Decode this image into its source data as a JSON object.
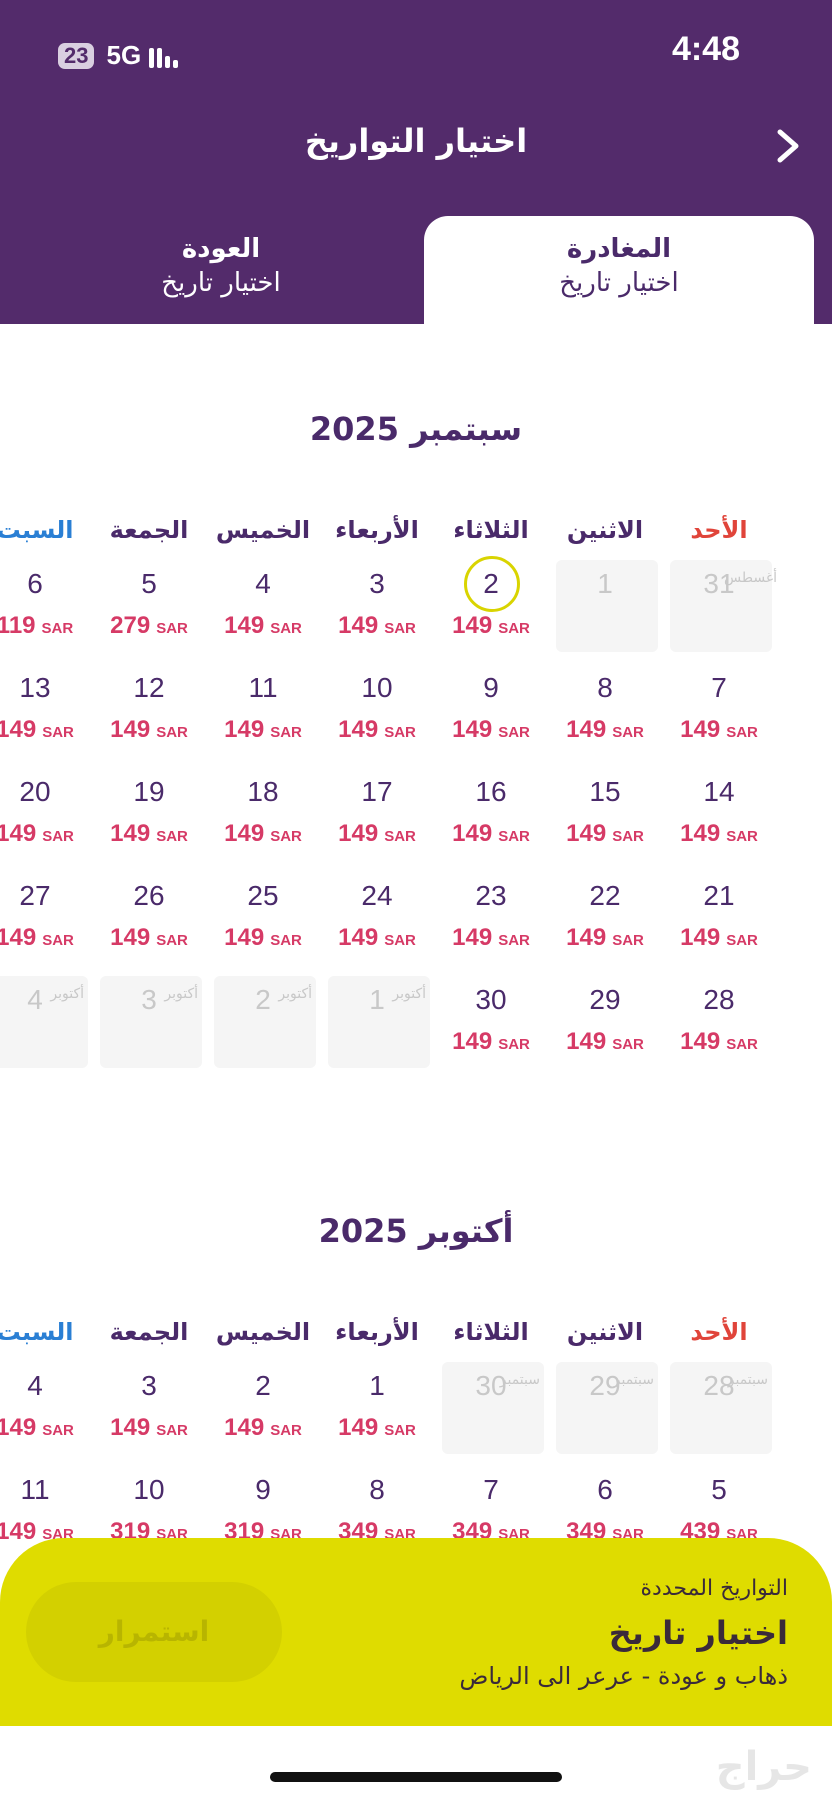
{
  "status": {
    "time": "4:48",
    "battery": "23",
    "network": "5G"
  },
  "header": {
    "title": "اختيار التواريخ"
  },
  "tabs": {
    "depart": {
      "label": "المغادرة",
      "value": "اختيار تاريخ"
    },
    "return": {
      "label": "العودة",
      "value": "اختيار تاريخ"
    }
  },
  "currency": "SAR",
  "weekdays": [
    "الأحد",
    "الاثنين",
    "الثلاثاء",
    "الأربعاء",
    "الخميس",
    "الجمعة",
    "السبت"
  ],
  "colors": {
    "header": "#532b6b",
    "price": "#d63a66",
    "sunday": "#e0443a",
    "saturday": "#2a7fd4",
    "selected_ring": "#d9d400",
    "bottom_bar": "#dfdc00"
  },
  "months": [
    {
      "title": "سبتمبر 2025",
      "weeks": [
        [
          {
            "d": "31",
            "m": "أغسطس",
            "off": true
          },
          {
            "d": "1",
            "off": true
          },
          {
            "d": "2",
            "p": "149",
            "sel": true
          },
          {
            "d": "3",
            "p": "149"
          },
          {
            "d": "4",
            "p": "149"
          },
          {
            "d": "5",
            "p": "279"
          },
          {
            "d": "6",
            "p": "119"
          }
        ],
        [
          {
            "d": "7",
            "p": "149"
          },
          {
            "d": "8",
            "p": "149"
          },
          {
            "d": "9",
            "p": "149"
          },
          {
            "d": "10",
            "p": "149"
          },
          {
            "d": "11",
            "p": "149"
          },
          {
            "d": "12",
            "p": "149"
          },
          {
            "d": "13",
            "p": "149"
          }
        ],
        [
          {
            "d": "14",
            "p": "149"
          },
          {
            "d": "15",
            "p": "149"
          },
          {
            "d": "16",
            "p": "149"
          },
          {
            "d": "17",
            "p": "149"
          },
          {
            "d": "18",
            "p": "149"
          },
          {
            "d": "19",
            "p": "149"
          },
          {
            "d": "20",
            "p": "149"
          }
        ],
        [
          {
            "d": "21",
            "p": "149"
          },
          {
            "d": "22",
            "p": "149"
          },
          {
            "d": "23",
            "p": "149"
          },
          {
            "d": "24",
            "p": "149"
          },
          {
            "d": "25",
            "p": "149"
          },
          {
            "d": "26",
            "p": "149"
          },
          {
            "d": "27",
            "p": "149"
          }
        ],
        [
          {
            "d": "28",
            "p": "149"
          },
          {
            "d": "29",
            "p": "149"
          },
          {
            "d": "30",
            "p": "149"
          },
          {
            "d": "1",
            "m": "أكتوبر",
            "off": true
          },
          {
            "d": "2",
            "m": "أكتوبر",
            "off": true
          },
          {
            "d": "3",
            "m": "أكتوبر",
            "off": true
          },
          {
            "d": "4",
            "m": "أكتوبر",
            "off": true
          }
        ]
      ]
    },
    {
      "title": "أكتوبر 2025",
      "weeks": [
        [
          {
            "d": "28",
            "m": "سبتمبر",
            "off": true
          },
          {
            "d": "29",
            "m": "سبتمبر",
            "off": true
          },
          {
            "d": "30",
            "m": "سبتمبر",
            "off": true
          },
          {
            "d": "1",
            "p": "149"
          },
          {
            "d": "2",
            "p": "149"
          },
          {
            "d": "3",
            "p": "149"
          },
          {
            "d": "4",
            "p": "149"
          }
        ],
        [
          {
            "d": "5",
            "p": "439"
          },
          {
            "d": "6",
            "p": "349"
          },
          {
            "d": "7",
            "p": "349"
          },
          {
            "d": "8",
            "p": "349"
          },
          {
            "d": "9",
            "p": "319"
          },
          {
            "d": "10",
            "p": "319"
          },
          {
            "d": "11",
            "p": "149"
          }
        ]
      ]
    }
  ],
  "bottom": {
    "subtitle": "التواريخ المحددة",
    "title": "اختيار تاريخ",
    "route": "ذهاب و عودة -  عرعر الى الرياض",
    "continue_label": "استمرار"
  },
  "watermark": "حراج"
}
